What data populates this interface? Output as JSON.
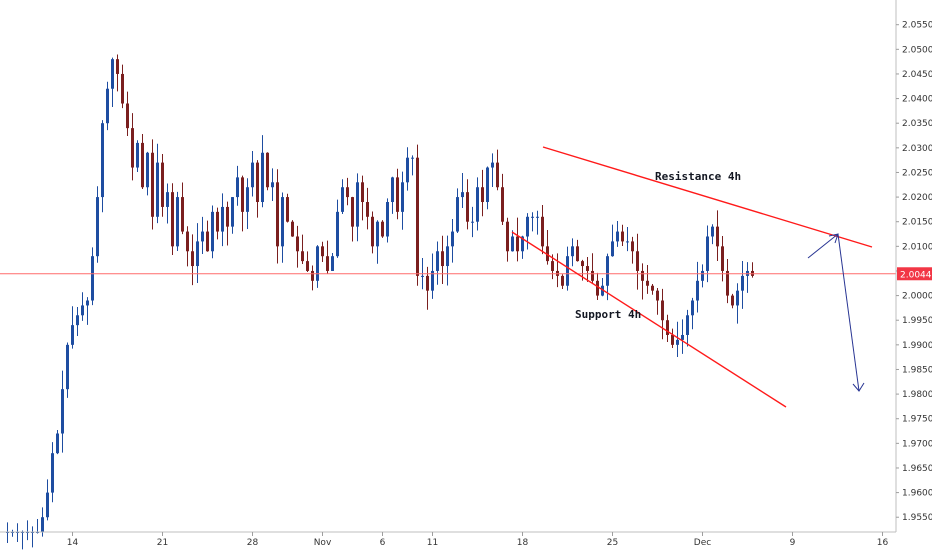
{
  "chart_data": {
    "type": "candlestick",
    "title": "",
    "xlabel": "",
    "ylabel": "",
    "ylim": [
      1.952,
      2.059
    ],
    "grid": false,
    "x_tick_labels": [
      "14",
      "21",
      "28",
      "Nov",
      "6",
      "11",
      "18",
      "25",
      "Dec",
      "9",
      "16"
    ],
    "x_tick_index": [
      14,
      32,
      50,
      64,
      76,
      86,
      104,
      122,
      140,
      158,
      176
    ],
    "y_ticks": [
      "2.05500",
      "2.05000",
      "2.04500",
      "2.04000",
      "2.03500",
      "2.03000",
      "2.02500",
      "2.02000",
      "2.01500",
      "2.01000",
      "2.00500",
      "2.00000",
      "1.99500",
      "1.99000",
      "1.98500",
      "1.98000",
      "1.97500",
      "1.97000",
      "1.96500",
      "1.96000",
      "1.95500"
    ],
    "current_price": "2.00443",
    "current_price_value": 2.00443,
    "colors": {
      "up": "#1e4da1",
      "down": "#7a1f1f",
      "lines": "#ff1a1a",
      "arrow": "#283593",
      "price_line": "#ff6b6b",
      "badge": "#f23645"
    },
    "closes": [
      1.952,
      1.952,
      1.952,
      1.952,
      1.952,
      1.952,
      1.952,
      1.952,
      1.955,
      1.96,
      1.968,
      1.972,
      1.981,
      1.99,
      1.994,
      1.996,
      1.998,
      1.999,
      2.008,
      2.02,
      2.035,
      2.042,
      2.048,
      2.045,
      2.039,
      2.034,
      2.026,
      2.031,
      2.022,
      2.029,
      2.016,
      2.027,
      2.018,
      2.021,
      2.01,
      2.02,
      2.013,
      2.009,
      2.006,
      2.011,
      2.013,
      2.009,
      2.017,
      2.013,
      2.018,
      2.014,
      2.02,
      2.024,
      2.017,
      2.022,
      2.027,
      2.019,
      2.029,
      2.022,
      2.023,
      2.01,
      2.02,
      2.015,
      2.012,
      2.009,
      2.007,
      2.005,
      2.003,
      2.01,
      2.008,
      2.005,
      2.008,
      2.017,
      2.022,
      2.02,
      2.014,
      2.023,
      2.019,
      2.016,
      2.01,
      2.015,
      2.012,
      2.019,
      2.024,
      2.017,
      2.023,
      2.028,
      2.028,
      2.004,
      2.004,
      2.001,
      2.005,
      2.009,
      2.006,
      2.01,
      2.013,
      2.02,
      2.021,
      2.015,
      2.015,
      2.022,
      2.019,
      2.026,
      2.027,
      2.022,
      2.015,
      2.009,
      2.012,
      2.009,
      2.012,
      2.016,
      2.016,
      2.016,
      2.01,
      2.007,
      2.005,
      2.004,
      2.002,
      2.008,
      2.01,
      2.007,
      2.006,
      2.005,
      2.003,
      2.0,
      2.002,
      2.008,
      2.011,
      2.013,
      2.011,
      2.011,
      2.009,
      2.005,
      2.003,
      2.002,
      2.001,
      1.999,
      1.995,
      1.992,
      1.99,
      1.991,
      1.992,
      1.996,
      1.999,
      2.003,
      2.005,
      2.012,
      2.014,
      2.01,
      2.005,
      2.0,
      1.998,
      2.001,
      2.004,
      2.005,
      2.004
    ]
  },
  "annotations": {
    "resistance_label": "Resistance 4h",
    "support_label": "Support 4h"
  }
}
